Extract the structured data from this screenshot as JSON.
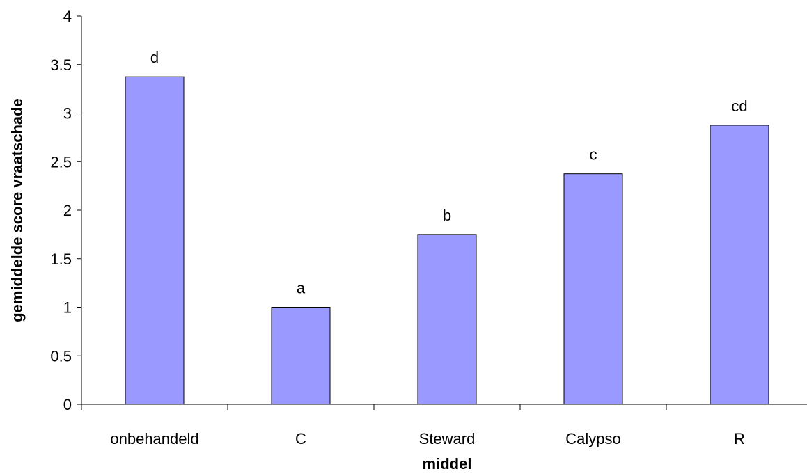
{
  "chart_data": {
    "type": "bar",
    "title": "",
    "xlabel": "middel",
    "ylabel": "gemiddelde score vraatschade",
    "categories": [
      "onbehandeld",
      "C",
      "Steward",
      "Calypso",
      "R"
    ],
    "values": [
      3.375,
      1.0,
      1.75,
      2.375,
      2.875
    ],
    "bar_labels": [
      "d",
      "a",
      "b",
      "c",
      "cd"
    ],
    "ylim": [
      0,
      4
    ],
    "yticks": [
      "0",
      "0.5",
      "1",
      "1.5",
      "2",
      "2.5",
      "3",
      "3.5",
      "4"
    ],
    "grid": false,
    "legend": "none",
    "colors": {
      "bar_fill": "#9999ff",
      "bar_stroke": "#000000"
    }
  }
}
